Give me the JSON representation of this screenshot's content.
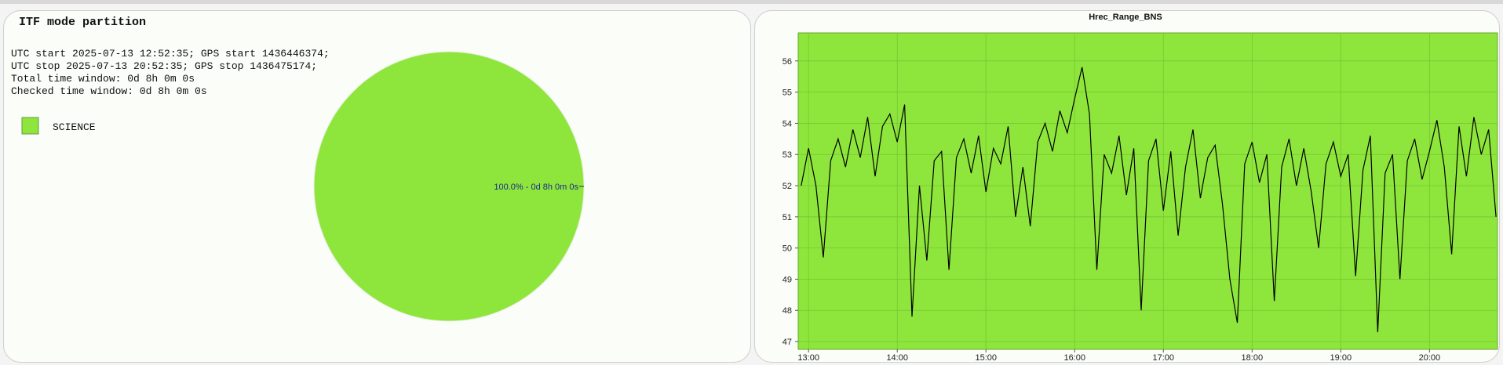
{
  "chart_data": [
    {
      "type": "pie",
      "title": "ITF mode partition",
      "info": [
        "UTC start 2025-07-13 12:52:35; GPS start 1436446374;",
        "UTC stop 2025-07-13 20:52:35; GPS stop 1436475174;",
        "Total time window: 0d 8h 0m 0s",
        "Checked time window: 0d 8h 0m 0s"
      ],
      "categories": [
        "SCIENCE"
      ],
      "values": [
        100
      ],
      "value_labels": [
        "100.0% - 0d 8h 0m 0s"
      ],
      "colors": [
        "#8ee63c"
      ]
    },
    {
      "type": "line",
      "title": "Hrec_Range_BNS",
      "x": [
        "12:55",
        "13:00",
        "13:05",
        "13:10",
        "13:15",
        "13:20",
        "13:25",
        "13:30",
        "13:35",
        "13:40",
        "13:45",
        "13:50",
        "13:55",
        "14:00",
        "14:05",
        "14:10",
        "14:15",
        "14:20",
        "14:25",
        "14:30",
        "14:35",
        "14:40",
        "14:45",
        "14:50",
        "14:55",
        "15:00",
        "15:05",
        "15:10",
        "15:15",
        "15:20",
        "15:25",
        "15:30",
        "15:35",
        "15:40",
        "15:45",
        "15:50",
        "15:55",
        "16:00",
        "16:05",
        "16:10",
        "16:15",
        "16:20",
        "16:25",
        "16:30",
        "16:35",
        "16:40",
        "16:45",
        "16:50",
        "16:55",
        "17:00",
        "17:05",
        "17:10",
        "17:15",
        "17:20",
        "17:25",
        "17:30",
        "17:35",
        "17:40",
        "17:45",
        "17:50",
        "17:55",
        "18:00",
        "18:05",
        "18:10",
        "18:15",
        "18:20",
        "18:25",
        "18:30",
        "18:35",
        "18:40",
        "18:45",
        "18:50",
        "18:55",
        "19:00",
        "19:05",
        "19:10",
        "19:15",
        "19:20",
        "19:25",
        "19:30",
        "19:35",
        "19:40",
        "19:45",
        "19:50",
        "19:55",
        "20:00",
        "20:05",
        "20:10",
        "20:15",
        "20:20",
        "20:25",
        "20:30",
        "20:35",
        "20:40",
        "20:45"
      ],
      "values": [
        52.0,
        53.2,
        52.0,
        49.7,
        52.8,
        53.5,
        52.6,
        53.8,
        52.9,
        54.2,
        52.3,
        53.9,
        54.3,
        53.4,
        54.6,
        47.8,
        52.0,
        49.6,
        52.8,
        53.1,
        49.3,
        52.9,
        53.5,
        52.4,
        53.6,
        51.8,
        53.2,
        52.7,
        53.9,
        51.0,
        52.6,
        50.7,
        53.4,
        54.0,
        53.1,
        54.4,
        53.7,
        54.8,
        55.8,
        54.3,
        49.3,
        53.0,
        52.4,
        53.6,
        51.7,
        53.2,
        48.0,
        52.8,
        53.5,
        51.2,
        53.1,
        50.4,
        52.6,
        53.8,
        51.6,
        52.9,
        53.3,
        51.4,
        49.0,
        47.6,
        52.7,
        53.4,
        52.1,
        53.0,
        48.3,
        52.6,
        53.5,
        52.0,
        53.2,
        51.8,
        50.0,
        52.7,
        53.4,
        52.3,
        53.0,
        49.1,
        52.5,
        53.6,
        47.3,
        52.4,
        53.0,
        49.0,
        52.8,
        53.5,
        52.2,
        53.1,
        54.1,
        52.6,
        49.8,
        53.9,
        52.3,
        54.2,
        53.0,
        53.8,
        51.0
      ],
      "color": "#000000",
      "plot_background": "#8ee63c",
      "grid": true,
      "xlim": [
        "12:53",
        "20:46"
      ],
      "xticks": [
        "13:00",
        "14:00",
        "15:00",
        "16:00",
        "17:00",
        "18:00",
        "19:00",
        "20:00"
      ],
      "ylim": [
        46.75,
        56.9
      ],
      "yticks": [
        47,
        48,
        49,
        50,
        51,
        52,
        53,
        54,
        55,
        56
      ]
    }
  ]
}
